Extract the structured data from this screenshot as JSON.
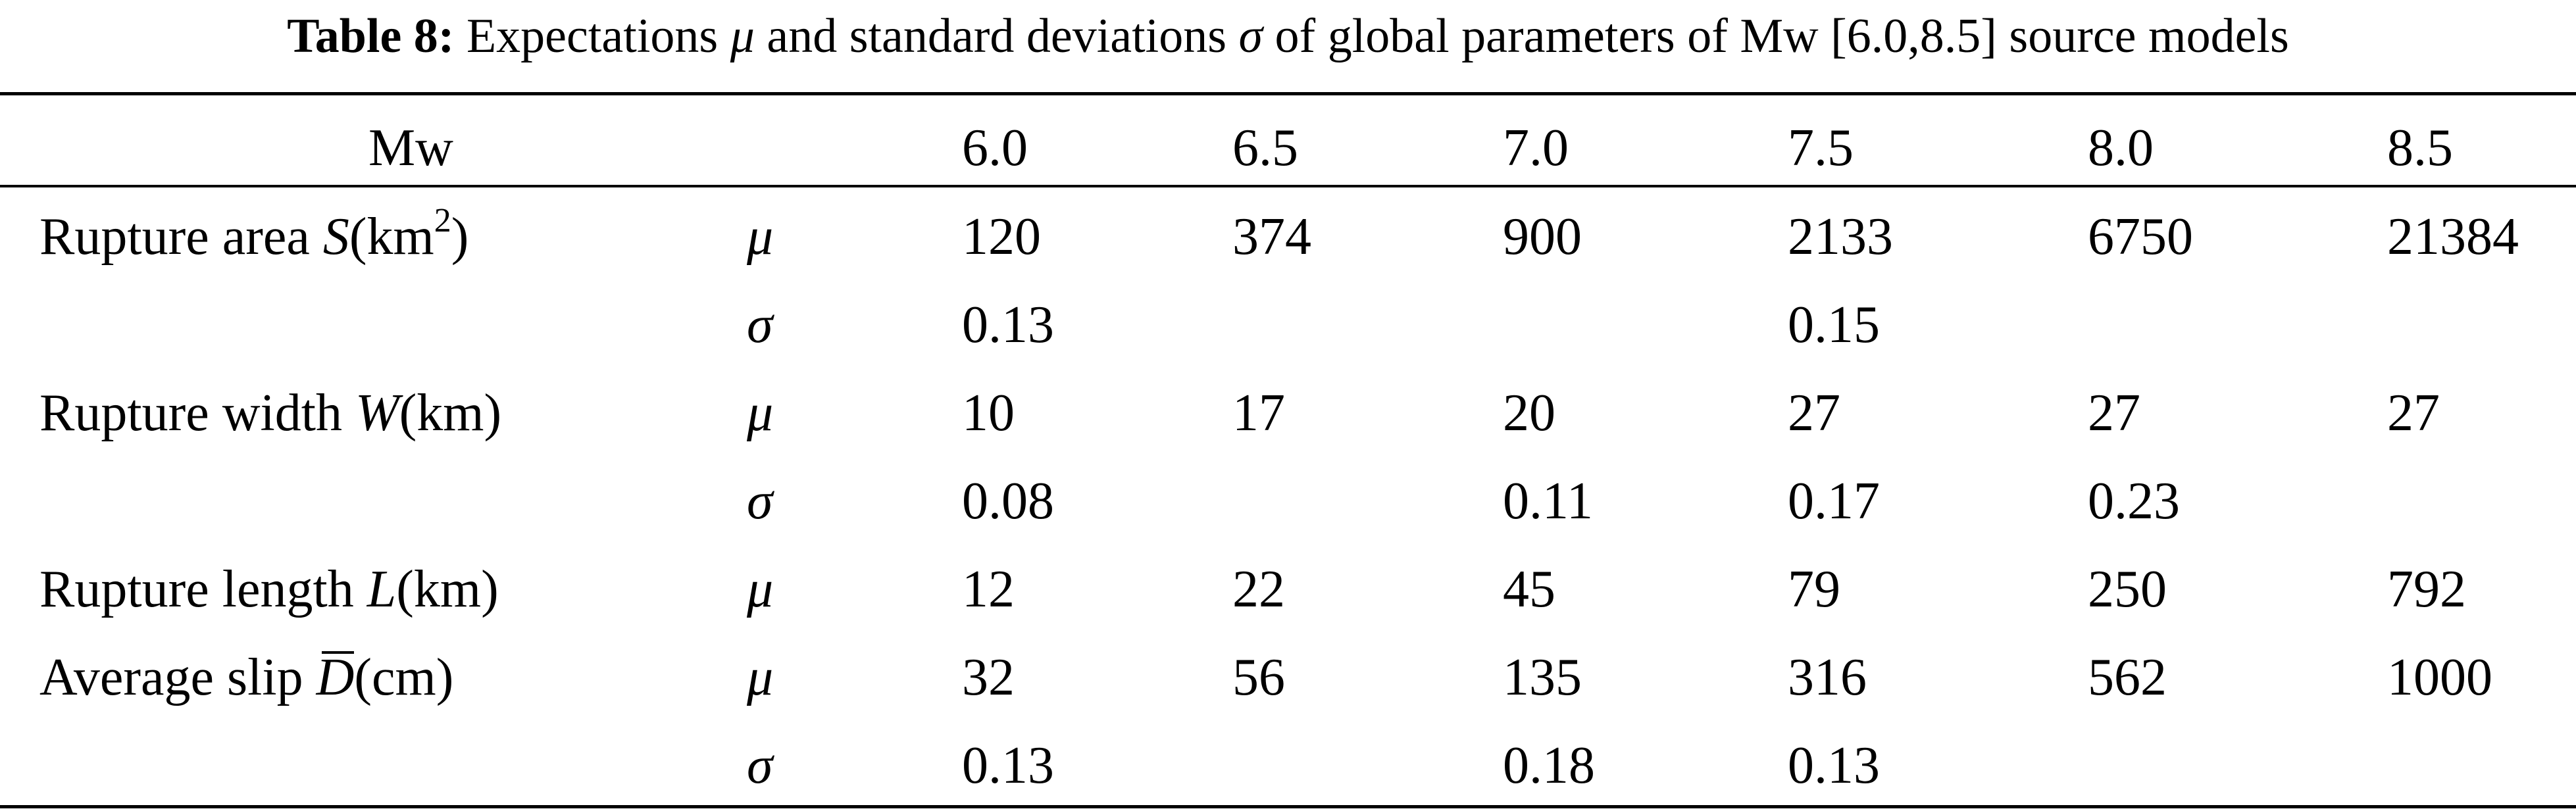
{
  "caption": {
    "label": "Table 8:",
    "text_prefix": " Expectations ",
    "mu_symbol": "μ",
    "text_middle": " and standard deviations ",
    "sigma_symbol": "σ",
    "text_suffix": " of global parameters of Mw [6.0,8.5] source models"
  },
  "table": {
    "header": {
      "label": "Mw",
      "magnitudes": [
        "6.0",
        "6.5",
        "7.0",
        "7.5",
        "8.0",
        "8.5"
      ]
    },
    "rows": [
      {
        "label_prefix": "Rupture area ",
        "label_var": "S",
        "label_unit_open": "(km",
        "label_sup": "2",
        "label_unit_close": ")",
        "stat": "μ",
        "values": [
          "120",
          "374",
          "900",
          "2133",
          "6750",
          "21384"
        ]
      },
      {
        "stat": "σ",
        "values": [
          "0.13",
          "",
          "",
          "0.15",
          "",
          ""
        ]
      },
      {
        "label_prefix": "Rupture width ",
        "label_var": "W",
        "label_unit": "(km)",
        "stat": "μ",
        "values": [
          "10",
          "17",
          "20",
          "27",
          "27",
          "27"
        ]
      },
      {
        "stat": "σ",
        "values": [
          "0.08",
          "",
          "0.11",
          "0.17",
          "0.23",
          ""
        ]
      },
      {
        "label_prefix": "Rupture length ",
        "label_var": "L",
        "label_unit": "(km)",
        "stat": "μ",
        "values": [
          "12",
          "22",
          "45",
          "79",
          "250",
          "792"
        ]
      },
      {
        "label_prefix": "Average slip ",
        "label_var": "D",
        "label_unit": "(cm)",
        "stat": "μ",
        "values": [
          "32",
          "56",
          "135",
          "316",
          "562",
          "1000"
        ]
      },
      {
        "stat": "σ",
        "values": [
          "0.13",
          "",
          "0.18",
          "0.13",
          "",
          ""
        ]
      }
    ]
  }
}
